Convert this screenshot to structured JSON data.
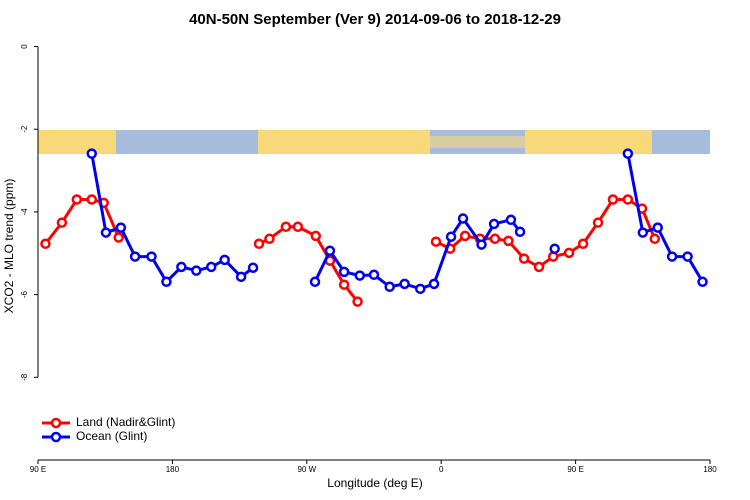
{
  "chart_data": {
    "type": "line",
    "title": "40N-50N September (Ver 9)   2014-09-06 to 2018-12-29",
    "xlabel": "Longitude (deg E)",
    "ylabel": "XCO2 - MLO trend (ppm)",
    "xlim": [
      -270,
      180
    ],
    "xticks": [
      {
        "value": -270,
        "label": "90 E"
      },
      {
        "value": -180,
        "label": "180"
      },
      {
        "value": -90,
        "label": "90 W"
      },
      0,
      {
        "value": 90,
        "label": "90 E"
      },
      180
    ],
    "ylim": [
      -10,
      0.4
    ],
    "yticks": [
      0,
      -2,
      -4,
      -6,
      -8
    ],
    "grid": false,
    "legend": "bottom-left",
    "series": [
      {
        "name": "Land (Nadir&Glint)",
        "color": "#ff0000",
        "x": [
          -265,
          -254,
          -244,
          -234,
          -226,
          -216,
          null,
          -122,
          -115,
          -104,
          -96,
          -84,
          -74.5,
          -65,
          -56,
          null,
          -3.5,
          6,
          16,
          26,
          36,
          45,
          55.5,
          65.5,
          75,
          85.6,
          95,
          105,
          115,
          125,
          134.5,
          143
        ],
        "values": [
          -4.77,
          -4.26,
          -3.7,
          -3.7,
          -3.78,
          -4.62,
          null,
          -4.77,
          -4.65,
          -4.36,
          -4.36,
          -4.58,
          -5.18,
          -5.76,
          -6.17,
          null,
          -4.72,
          -4.89,
          -4.58,
          -4.65,
          -4.65,
          -4.7,
          -5.13,
          -5.33,
          -5.08,
          -4.99,
          -4.77,
          -4.26,
          -3.7,
          -3.7,
          -3.92,
          -4.65
        ]
      },
      {
        "name": "Ocean (Glint)",
        "color": "#0000ee",
        "x": [
          -234,
          -224.5,
          -214.5,
          -205,
          -194,
          -184,
          -174,
          -164,
          -154,
          -145,
          -134,
          -126,
          null,
          -84.5,
          -74.5,
          -65,
          -54.5,
          -45,
          -34.5,
          -24.5,
          -14,
          -4.8,
          6.6,
          14.6,
          27,
          35.4,
          46.7,
          52.8,
          null,
          76,
          null,
          125,
          135,
          145,
          154.6,
          165,
          175
        ],
        "values": [
          -2.59,
          -4.5,
          -4.38,
          -5.08,
          -5.08,
          -5.69,
          -5.33,
          -5.42,
          -5.33,
          -5.16,
          -5.57,
          -5.35,
          null,
          -5.69,
          -4.94,
          -5.45,
          -5.54,
          -5.52,
          -5.81,
          -5.74,
          -5.86,
          -5.74,
          -4.6,
          -4.16,
          -4.79,
          -4.29,
          -4.19,
          -4.48,
          null,
          -4.89,
          null,
          -2.59,
          -4.5,
          -4.38,
          -5.08,
          -5.08,
          -5.69
        ]
      }
    ]
  }
}
